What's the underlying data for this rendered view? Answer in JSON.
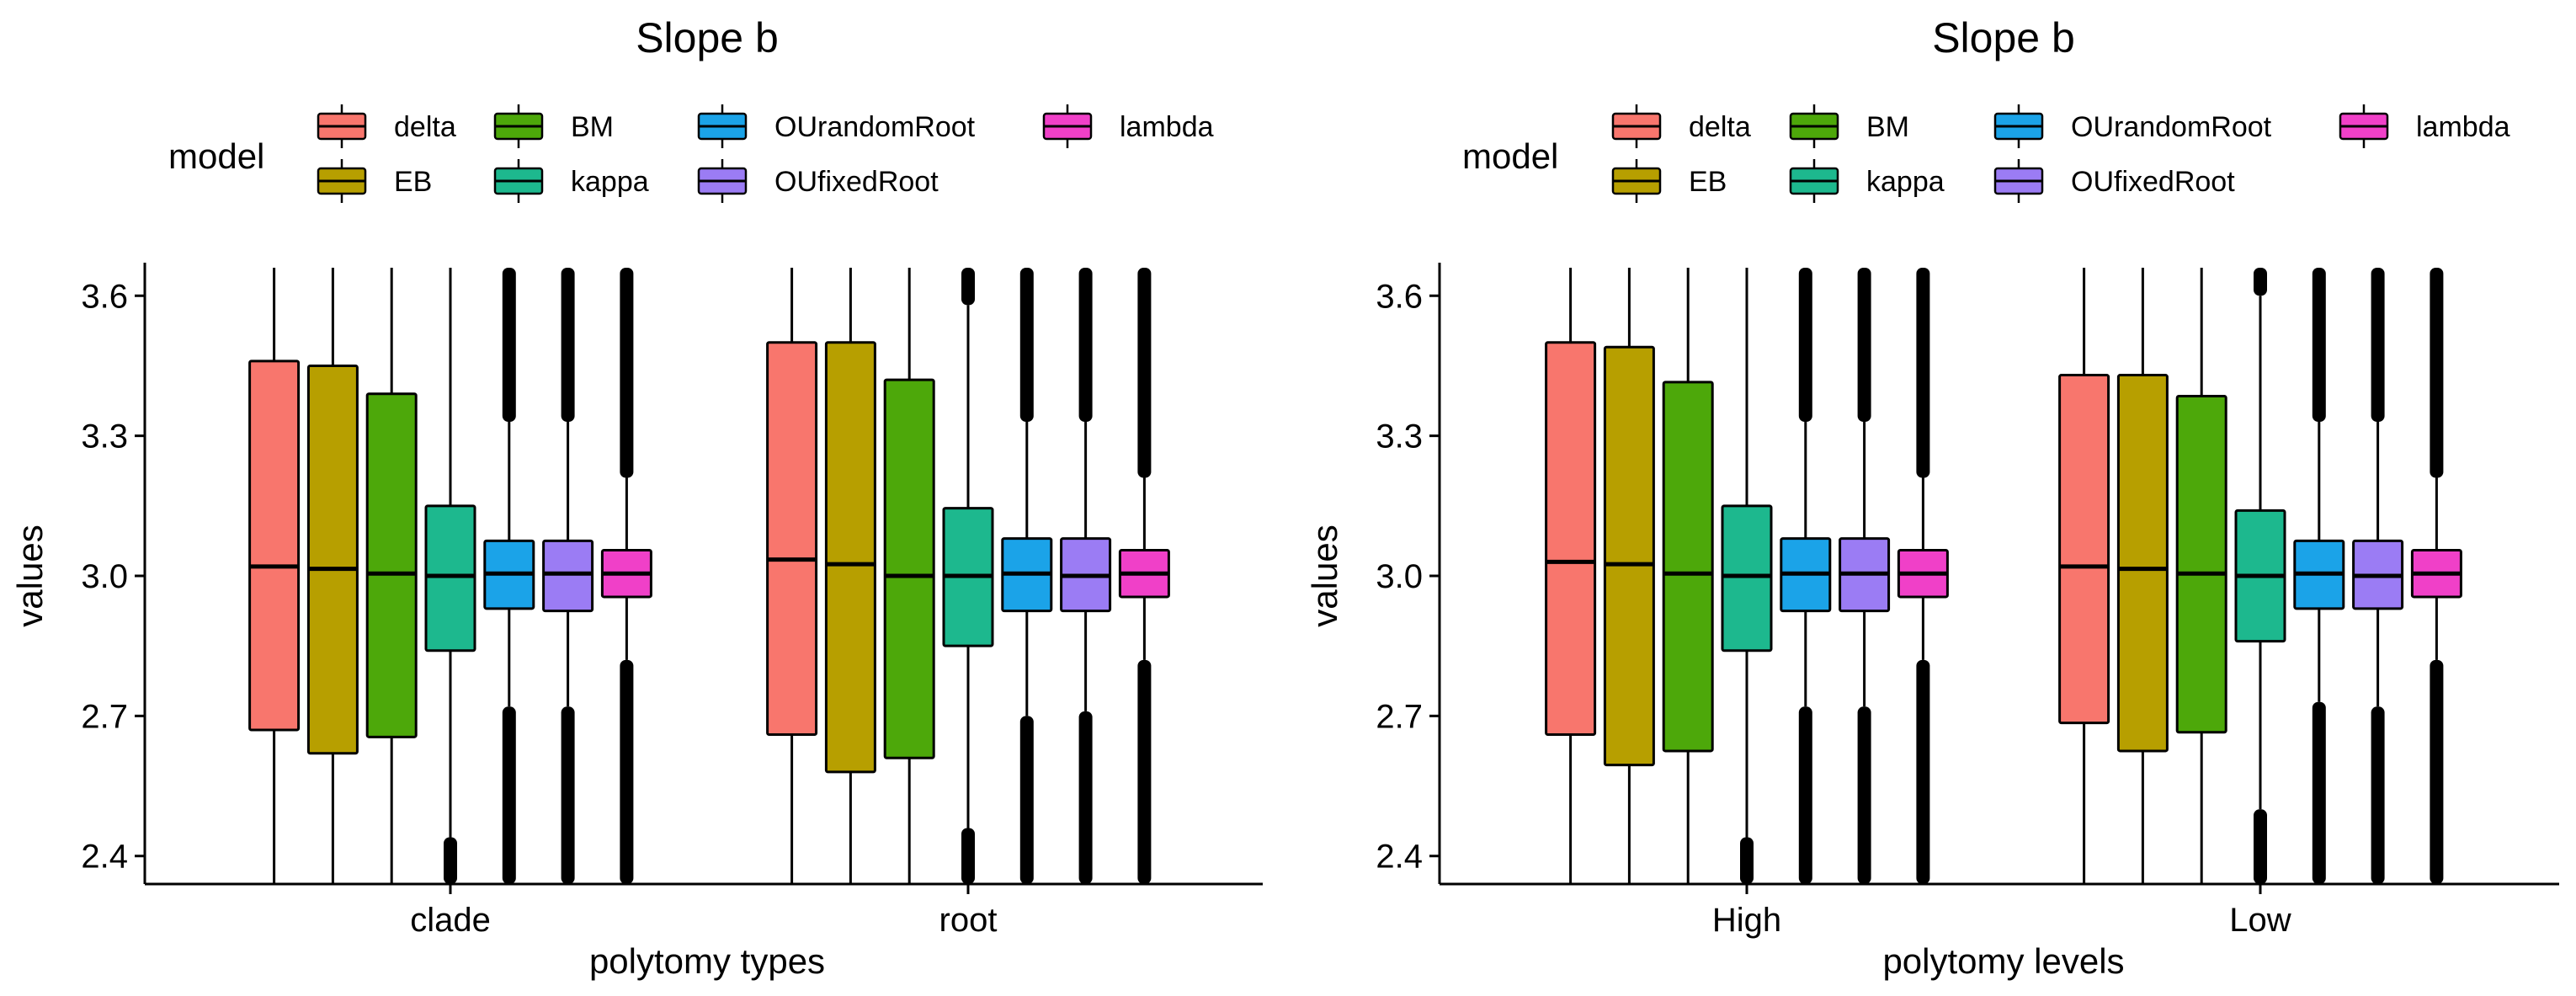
{
  "chart_data": [
    {
      "type": "boxplot",
      "title": "Slope b",
      "xlabel": "polytomy types",
      "ylabel": "values",
      "ylim": [
        2.34,
        3.66
      ],
      "yticks": [
        2.4,
        2.7,
        3.0,
        3.3,
        3.6
      ],
      "ytick_labels": [
        "2.4",
        "2.7",
        "3.0",
        "3.3",
        "3.6"
      ],
      "categories": [
        "clade",
        "root"
      ],
      "legend": {
        "title": "model",
        "position": "top"
      },
      "series": [
        {
          "name": "delta",
          "color": "#F8766D",
          "boxes": [
            {
              "category": "clade",
              "q1": 2.67,
              "median": 3.02,
              "q3": 3.46,
              "whisker_low": 2.34,
              "whisker_high": 3.66,
              "outliers_low_to": null,
              "outliers_high_from": null
            },
            {
              "category": "root",
              "q1": 2.66,
              "median": 3.035,
              "q3": 3.5,
              "whisker_low": 2.34,
              "whisker_high": 3.66,
              "outliers_low_to": null,
              "outliers_high_from": null
            }
          ]
        },
        {
          "name": "EB",
          "color": "#B79F00",
          "boxes": [
            {
              "category": "clade",
              "q1": 2.62,
              "median": 3.015,
              "q3": 3.45,
              "whisker_low": 2.34,
              "whisker_high": 3.66,
              "outliers_low_to": null,
              "outliers_high_from": null
            },
            {
              "category": "root",
              "q1": 2.58,
              "median": 3.025,
              "q3": 3.5,
              "whisker_low": 2.34,
              "whisker_high": 3.66,
              "outliers_low_to": null,
              "outliers_high_from": null
            }
          ]
        },
        {
          "name": "BM",
          "color": "#4DA80A",
          "boxes": [
            {
              "category": "clade",
              "q1": 2.655,
              "median": 3.005,
              "q3": 3.39,
              "whisker_low": 2.34,
              "whisker_high": 3.66,
              "outliers_low_to": null,
              "outliers_high_from": null
            },
            {
              "category": "root",
              "q1": 2.61,
              "median": 3.0,
              "q3": 3.42,
              "whisker_low": 2.34,
              "whisker_high": 3.66,
              "outliers_low_to": null,
              "outliers_high_from": null
            }
          ]
        },
        {
          "name": "kappa",
          "color": "#1DB88E",
          "boxes": [
            {
              "category": "clade",
              "q1": 2.84,
              "median": 3.0,
              "q3": 3.15,
              "whisker_low": 2.44,
              "whisker_high": 3.66,
              "outliers_low_to": 2.44,
              "outliers_high_from": null
            },
            {
              "category": "root",
              "q1": 2.85,
              "median": 3.0,
              "q3": 3.145,
              "whisker_low": 2.46,
              "whisker_high": 3.58,
              "outliers_low_to": 2.46,
              "outliers_high_from": 3.58
            }
          ]
        },
        {
          "name": "OUrandomRoot",
          "color": "#1BA3E8",
          "boxes": [
            {
              "category": "clade",
              "q1": 2.93,
              "median": 3.005,
              "q3": 3.075,
              "whisker_low": 2.72,
              "whisker_high": 3.33,
              "outliers_low_to": 2.72,
              "outliers_high_from": 3.33
            },
            {
              "category": "root",
              "q1": 2.925,
              "median": 3.005,
              "q3": 3.08,
              "whisker_low": 2.7,
              "whisker_high": 3.33,
              "outliers_low_to": 2.7,
              "outliers_high_from": 3.33
            }
          ]
        },
        {
          "name": "OUfixedRoot",
          "color": "#9B7CF4",
          "boxes": [
            {
              "category": "clade",
              "q1": 2.925,
              "median": 3.005,
              "q3": 3.075,
              "whisker_low": 2.72,
              "whisker_high": 3.33,
              "outliers_low_to": 2.72,
              "outliers_high_from": 3.33
            },
            {
              "category": "root",
              "q1": 2.925,
              "median": 3.0,
              "q3": 3.08,
              "whisker_low": 2.71,
              "whisker_high": 3.33,
              "outliers_low_to": 2.71,
              "outliers_high_from": 3.33
            }
          ]
        },
        {
          "name": "lambda",
          "color": "#F040C8",
          "boxes": [
            {
              "category": "clade",
              "q1": 2.955,
              "median": 3.005,
              "q3": 3.055,
              "whisker_low": 2.82,
              "whisker_high": 3.21,
              "outliers_low_to": 2.82,
              "outliers_high_from": 3.21
            },
            {
              "category": "root",
              "q1": 2.955,
              "median": 3.005,
              "q3": 3.055,
              "whisker_low": 2.82,
              "whisker_high": 3.21,
              "outliers_low_to": 2.82,
              "outliers_high_from": 3.21
            }
          ]
        }
      ]
    },
    {
      "type": "boxplot",
      "title": "Slope b",
      "xlabel": "polytomy levels",
      "ylabel": "values",
      "ylim": [
        2.34,
        3.66
      ],
      "yticks": [
        2.4,
        2.7,
        3.0,
        3.3,
        3.6
      ],
      "ytick_labels": [
        "2.4",
        "2.7",
        "3.0",
        "3.3",
        "3.6"
      ],
      "categories": [
        "High",
        "Low"
      ],
      "legend": {
        "title": "model",
        "position": "top"
      },
      "series": [
        {
          "name": "delta",
          "color": "#F8766D",
          "boxes": [
            {
              "category": "High",
              "q1": 2.66,
              "median": 3.03,
              "q3": 3.5,
              "whisker_low": 2.34,
              "whisker_high": 3.66,
              "outliers_low_to": null,
              "outliers_high_from": null
            },
            {
              "category": "Low",
              "q1": 2.685,
              "median": 3.02,
              "q3": 3.43,
              "whisker_low": 2.34,
              "whisker_high": 3.66,
              "outliers_low_to": null,
              "outliers_high_from": null
            }
          ]
        },
        {
          "name": "EB",
          "color": "#B79F00",
          "boxes": [
            {
              "category": "High",
              "q1": 2.595,
              "median": 3.025,
              "q3": 3.49,
              "whisker_low": 2.34,
              "whisker_high": 3.66,
              "outliers_low_to": null,
              "outliers_high_from": null
            },
            {
              "category": "Low",
              "q1": 2.625,
              "median": 3.015,
              "q3": 3.43,
              "whisker_low": 2.34,
              "whisker_high": 3.66,
              "outliers_low_to": null,
              "outliers_high_from": null
            }
          ]
        },
        {
          "name": "BM",
          "color": "#4DA80A",
          "boxes": [
            {
              "category": "High",
              "q1": 2.625,
              "median": 3.005,
              "q3": 3.415,
              "whisker_low": 2.34,
              "whisker_high": 3.66,
              "outliers_low_to": null,
              "outliers_high_from": null
            },
            {
              "category": "Low",
              "q1": 2.665,
              "median": 3.005,
              "q3": 3.385,
              "whisker_low": 2.34,
              "whisker_high": 3.66,
              "outliers_low_to": null,
              "outliers_high_from": null
            }
          ]
        },
        {
          "name": "kappa",
          "color": "#1DB88E",
          "boxes": [
            {
              "category": "High",
              "q1": 2.84,
              "median": 3.0,
              "q3": 3.15,
              "whisker_low": 2.44,
              "whisker_high": 3.66,
              "outliers_low_to": 2.44,
              "outliers_high_from": null
            },
            {
              "category": "Low",
              "q1": 2.86,
              "median": 3.0,
              "q3": 3.14,
              "whisker_low": 2.5,
              "whisker_high": 3.6,
              "outliers_low_to": 2.5,
              "outliers_high_from": 3.6
            }
          ]
        },
        {
          "name": "OUrandomRoot",
          "color": "#1BA3E8",
          "boxes": [
            {
              "category": "High",
              "q1": 2.925,
              "median": 3.005,
              "q3": 3.08,
              "whisker_low": 2.72,
              "whisker_high": 3.33,
              "outliers_low_to": 2.72,
              "outliers_high_from": 3.33
            },
            {
              "category": "Low",
              "q1": 2.93,
              "median": 3.005,
              "q3": 3.075,
              "whisker_low": 2.73,
              "whisker_high": 3.33,
              "outliers_low_to": 2.73,
              "outliers_high_from": 3.33
            }
          ]
        },
        {
          "name": "OUfixedRoot",
          "color": "#9B7CF4",
          "boxes": [
            {
              "category": "High",
              "q1": 2.925,
              "median": 3.005,
              "q3": 3.08,
              "whisker_low": 2.72,
              "whisker_high": 3.33,
              "outliers_low_to": 2.72,
              "outliers_high_from": 3.33
            },
            {
              "category": "Low",
              "q1": 2.93,
              "median": 3.0,
              "q3": 3.075,
              "whisker_low": 2.72,
              "whisker_high": 3.33,
              "outliers_low_to": 2.72,
              "outliers_high_from": 3.33
            }
          ]
        },
        {
          "name": "lambda",
          "color": "#F040C8",
          "boxes": [
            {
              "category": "High",
              "q1": 2.955,
              "median": 3.005,
              "q3": 3.055,
              "whisker_low": 2.82,
              "whisker_high": 3.21,
              "outliers_low_to": 2.82,
              "outliers_high_from": 3.21
            },
            {
              "category": "Low",
              "q1": 2.955,
              "median": 3.005,
              "q3": 3.055,
              "whisker_low": 2.82,
              "whisker_high": 3.21,
              "outliers_low_to": 2.82,
              "outliers_high_from": 3.21
            }
          ]
        }
      ]
    }
  ]
}
